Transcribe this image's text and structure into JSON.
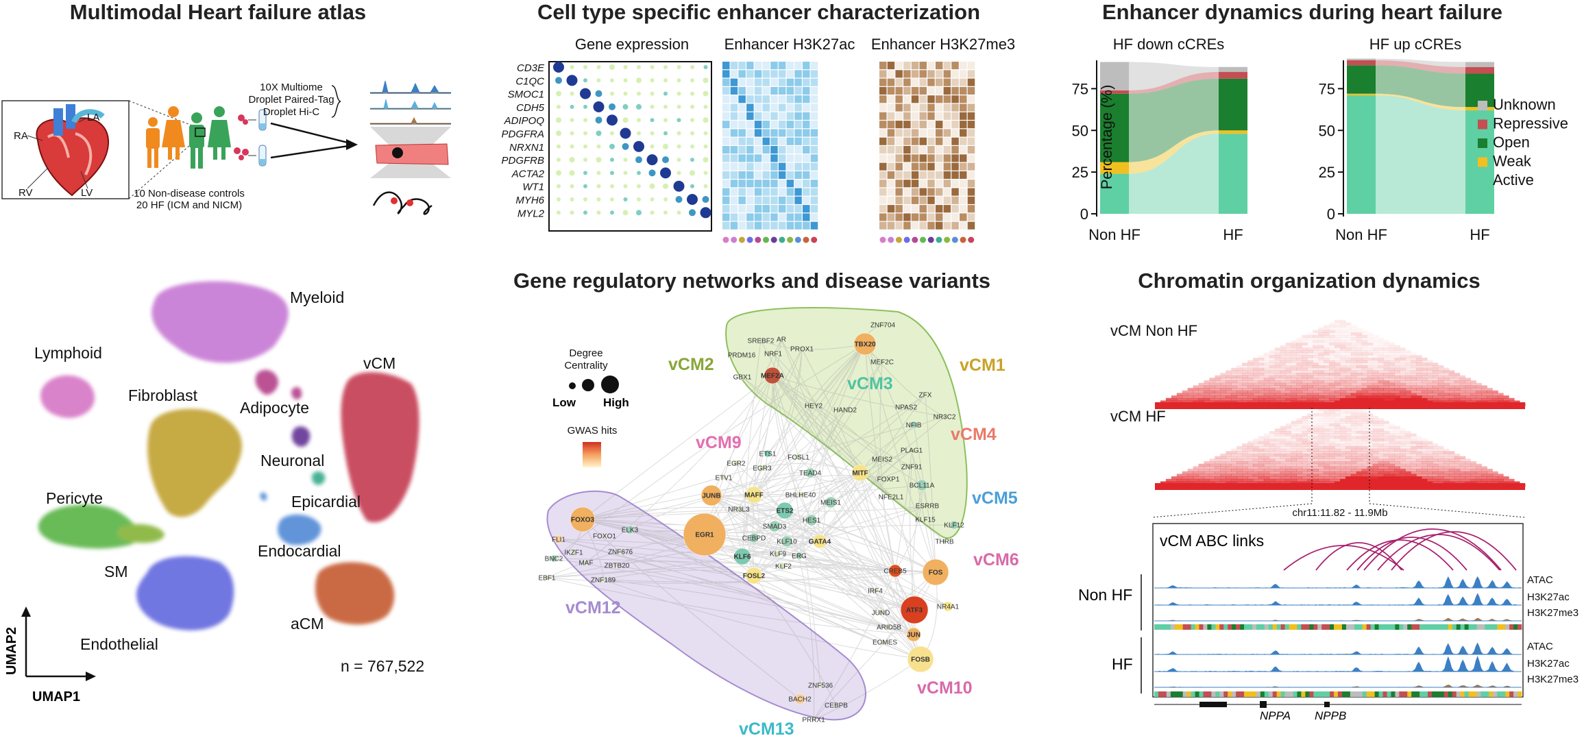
{
  "titles": {
    "atlas": "Multimodal Heart failure atlas",
    "enhancer": "Cell type specific enhancer characterization",
    "dynamics": "Enhancer dynamics during heart failure",
    "grn": "Gene regulatory networks and disease variants",
    "chromatin": "Chromatin organization dynamics"
  },
  "atlas": {
    "heart_labels": [
      "RA",
      "LA",
      "RV",
      "LV"
    ],
    "assays": [
      "10X Multiome",
      "Droplet Paired-Tag",
      "Droplet Hi-C"
    ],
    "cohort": [
      "10 Non-disease controls",
      "20 HF (ICM and NICM)"
    ]
  },
  "umap": {
    "clusters": [
      {
        "name": "Myeloid",
        "color": "#c97fd6"
      },
      {
        "name": "Lymphoid",
        "color": "#d87dc8"
      },
      {
        "name": "vCM",
        "color": "#c7445a"
      },
      {
        "name": "Fibroblast",
        "color": "#c4a63a"
      },
      {
        "name": "Adipocyte",
        "color": "#b8488f"
      },
      {
        "name": "Neuronal",
        "color": "#6b3d9a"
      },
      {
        "name": "Epicardial",
        "color": "#3cae8e"
      },
      {
        "name": "Pericyte",
        "color": "#62b84f"
      },
      {
        "name": "Endocardial",
        "color": "#5a8fd8"
      },
      {
        "name": "SM",
        "color": "#8bb842"
      },
      {
        "name": "Endothelial",
        "color": "#6a6fe0"
      },
      {
        "name": "aCM",
        "color": "#c8633a"
      }
    ],
    "n_label": "n = 767,522",
    "x_axis": "UMAP1",
    "y_axis": "UMAP2"
  },
  "enhancer": {
    "panel_titles": [
      "Gene expression",
      "Enhancer H3K27ac",
      "Enhancer H3K27me3"
    ],
    "genes": [
      "CD3E",
      "C1QC",
      "SMOC1",
      "CDH5",
      "ADIPOQ",
      "PDGFRA",
      "NRXN1",
      "PDGFRB",
      "ACTA2",
      "WT1",
      "MYH6",
      "MYL2"
    ],
    "celltype_colors": [
      "#d87dc8",
      "#c97fd6",
      "#c4a63a",
      "#6a6fe0",
      "#b8488f",
      "#62b84f",
      "#6b3d9a",
      "#3cae8e",
      "#8bb842",
      "#5a8fd8",
      "#c8633a",
      "#c7445a"
    ]
  },
  "chart_data": [
    {
      "type": "area",
      "title": "HF down cCREs",
      "categories": [
        "Non HF",
        "HF"
      ],
      "ylabel": "Percentage (%)",
      "ylim": [
        0,
        92
      ],
      "yticks": [
        0,
        25,
        50,
        75
      ],
      "series": [
        {
          "name": "Active",
          "values": [
            24,
            48
          ]
        },
        {
          "name": "Weak",
          "values": [
            7,
            2
          ]
        },
        {
          "name": "Open",
          "values": [
            41,
            31
          ]
        },
        {
          "name": "Repressive",
          "values": [
            2,
            4
          ]
        },
        {
          "name": "Unknown",
          "values": [
            17,
            3
          ]
        }
      ]
    },
    {
      "type": "area",
      "title": "HF up cCREs",
      "categories": [
        "Non HF",
        "HF"
      ],
      "ylabel": "",
      "ylim": [
        0,
        92
      ],
      "yticks": [
        0,
        25,
        50,
        75
      ],
      "series": [
        {
          "name": "Active",
          "values": [
            71,
            62
          ]
        },
        {
          "name": "Weak",
          "values": [
            1,
            2
          ]
        },
        {
          "name": "Open",
          "values": [
            17,
            20
          ]
        },
        {
          "name": "Repressive",
          "values": [
            3,
            4
          ]
        },
        {
          "name": "Unknown",
          "values": [
            1,
            3
          ]
        }
      ]
    }
  ],
  "legend": [
    {
      "name": "Unknown",
      "color": "#bdbdbd"
    },
    {
      "name": "Repressive",
      "color": "#c44e52"
    },
    {
      "name": "Open",
      "color": "#1a7f2e"
    },
    {
      "name": "Weak",
      "color": "#f0c020"
    },
    {
      "name": "Active",
      "color": "#5fcfa4"
    }
  ],
  "grn": {
    "legend_title": [
      "Degree",
      "Centrality"
    ],
    "legend_low": "Low",
    "legend_high": "High",
    "gwas_label": "GWAS hits",
    "modules": [
      {
        "name": "vCM1",
        "color": "#c9a227"
      },
      {
        "name": "vCM2",
        "color": "#8aa63a"
      },
      {
        "name": "vCM3",
        "color": "#4fc3a1"
      },
      {
        "name": "vCM4",
        "color": "#ea7a6a"
      },
      {
        "name": "vCM5",
        "color": "#4a9fd8"
      },
      {
        "name": "vCM6",
        "color": "#d96aa8"
      },
      {
        "name": "vCM9",
        "color": "#e36fb0"
      },
      {
        "name": "vCM10",
        "color": "#d96aa8"
      },
      {
        "name": "vCM12",
        "color": "#a58bd0"
      },
      {
        "name": "vCM13",
        "color": "#3cb9c8"
      }
    ],
    "nodes": [
      "ZNF704",
      "SREBF2",
      "AR",
      "PRDM16",
      "NRF1",
      "PROX1",
      "TBX20",
      "MEF2C",
      "GBX1",
      "MEF2A",
      "ZFX",
      "HEY2",
      "HAND2",
      "NPAS2",
      "NR3C2",
      "NFIB",
      "MEIS2",
      "PLAG1",
      "ZNF91",
      "MITF",
      "FOXP1",
      "BCL11A",
      "NFE2L1",
      "ESRRB",
      "KLF15",
      "KLF12",
      "THRB",
      "ETS1",
      "FOSL1",
      "EGR2",
      "EGR3",
      "TEAD4",
      "ETV1",
      "JUNB",
      "MAFF",
      "BHLHE40",
      "NR3L3",
      "ETS2",
      "MEIS1",
      "HES1",
      "SMAD3",
      "EGR1",
      "CEBPD",
      "KLF10",
      "GATA4",
      "KLF9",
      "ERG",
      "KLF6",
      "KLF2",
      "FOSL2",
      "FOXO3",
      "FLI1",
      "FOXO1",
      "ELK3",
      "IKZF1",
      "ZNF676",
      "BNC2",
      "MAF",
      "ZBTB20",
      "EBF1",
      "ZNF189",
      "CREB5",
      "FOS",
      "IRF4",
      "ATF3",
      "NR4A1",
      "JUND",
      "ARID5B",
      "JUN",
      "EOMES",
      "FOSB",
      "ZNF536",
      "BACH2",
      "CEBPB",
      "PRRX1"
    ]
  },
  "chromatin": {
    "maps": [
      "vCM Non HF",
      "vCM HF"
    ],
    "region": "chr11:11.82 - 11.9Mb",
    "abc_title": "vCM ABC links",
    "groups": [
      "Non HF",
      "HF"
    ],
    "tracks": [
      "ATAC",
      "H3K27ac",
      "H3K27me3"
    ],
    "genes": [
      "NPPA",
      "NPPB"
    ]
  }
}
